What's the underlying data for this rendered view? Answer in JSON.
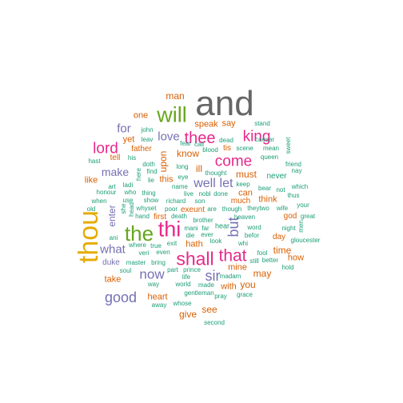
{
  "wordcloud": {
    "colors": {
      "gray": "#666666",
      "green": "#66a61e",
      "magenta": "#e7298a",
      "orange": "#d95f02",
      "purple": "#7570b3",
      "gold": "#e6ab02",
      "teal": "#1b9e77"
    },
    "words": [
      {
        "text": "and",
        "color": "#666666"
      },
      {
        "text": "will",
        "color": "#66a61e"
      },
      {
        "text": "thou",
        "color": "#e6ab02"
      },
      {
        "text": "thi",
        "color": "#e7298a"
      },
      {
        "text": "the",
        "color": "#66a61e"
      },
      {
        "text": "shall",
        "color": "#e7298a"
      },
      {
        "text": "that",
        "color": "#e7298a"
      },
      {
        "text": "thee",
        "color": "#e7298a"
      },
      {
        "text": "king",
        "color": "#e7298a"
      },
      {
        "text": "come",
        "color": "#e7298a"
      },
      {
        "text": "lord",
        "color": "#e7298a"
      },
      {
        "text": "good",
        "color": "#7570b3"
      },
      {
        "text": "but",
        "color": "#7570b3"
      },
      {
        "text": "sir",
        "color": "#7570b3"
      },
      {
        "text": "now",
        "color": "#7570b3"
      },
      {
        "text": "love",
        "color": "#7570b3"
      },
      {
        "text": "well",
        "color": "#7570b3"
      },
      {
        "text": "let",
        "color": "#7570b3"
      },
      {
        "text": "what",
        "color": "#7570b3"
      },
      {
        "text": "make",
        "color": "#7570b3"
      },
      {
        "text": "for",
        "color": "#7570b3"
      },
      {
        "text": "enter",
        "color": "#7570b3"
      },
      {
        "text": "man",
        "color": "#d95f02"
      },
      {
        "text": "one",
        "color": "#d95f02"
      },
      {
        "text": "say",
        "color": "#d95f02"
      },
      {
        "text": "speak",
        "color": "#d95f02"
      },
      {
        "text": "know",
        "color": "#d95f02"
      },
      {
        "text": "upon",
        "color": "#d95f02"
      },
      {
        "text": "ill",
        "color": "#d95f02"
      },
      {
        "text": "must",
        "color": "#d95f02"
      },
      {
        "text": "may",
        "color": "#d95f02"
      },
      {
        "text": "you",
        "color": "#d95f02"
      },
      {
        "text": "see",
        "color": "#d95f02"
      },
      {
        "text": "give",
        "color": "#d95f02"
      },
      {
        "text": "time",
        "color": "#d95f02"
      },
      {
        "text": "how",
        "color": "#d95f02"
      },
      {
        "text": "take",
        "color": "#d95f02"
      },
      {
        "text": "yet",
        "color": "#d95f02"
      },
      {
        "text": "like",
        "color": "#d95f02"
      },
      {
        "text": "this",
        "color": "#d95f02"
      },
      {
        "text": "hath",
        "color": "#d95f02"
      },
      {
        "text": "can",
        "color": "#d95f02"
      },
      {
        "text": "think",
        "color": "#d95f02"
      },
      {
        "text": "mine",
        "color": "#d95f02"
      },
      {
        "text": "with",
        "color": "#d95f02"
      },
      {
        "text": "heart",
        "color": "#d95f02"
      },
      {
        "text": "first",
        "color": "#d95f02"
      },
      {
        "text": "much",
        "color": "#d95f02"
      },
      {
        "text": "father",
        "color": "#d95f02"
      },
      {
        "text": "tell",
        "color": "#d95f02"
      },
      {
        "text": "exeunt",
        "color": "#d95f02"
      },
      {
        "text": "god",
        "color": "#d95f02"
      },
      {
        "text": "day",
        "color": "#d95f02"
      },
      {
        "text": "tis",
        "color": "#d95f02"
      },
      {
        "text": "never",
        "color": "#1b9e77"
      },
      {
        "text": "hear",
        "color": "#1b9e77"
      },
      {
        "text": "stand",
        "color": "#1b9e77"
      },
      {
        "text": "dead",
        "color": "#1b9e77"
      },
      {
        "text": "john",
        "color": "#1b9e77"
      },
      {
        "text": "leav",
        "color": "#1b9e77"
      },
      {
        "text": "fear",
        "color": "#1b9e77"
      },
      {
        "text": "call",
        "color": "#1b9e77"
      },
      {
        "text": "blood",
        "color": "#1b9e77"
      },
      {
        "text": "scene",
        "color": "#1b9e77"
      },
      {
        "text": "mean",
        "color": "#1b9e77"
      },
      {
        "text": "sweet",
        "color": "#1b9e77"
      },
      {
        "text": "his",
        "color": "#1b9e77"
      },
      {
        "text": "caesar",
        "color": "#1b9e77"
      },
      {
        "text": "queen",
        "color": "#1b9e77"
      },
      {
        "text": "friend",
        "color": "#1b9e77"
      },
      {
        "text": "nay",
        "color": "#1b9e77"
      },
      {
        "text": "hast",
        "color": "#1b9e77"
      },
      {
        "text": "doth",
        "color": "#1b9e77"
      },
      {
        "text": "here",
        "color": "#1b9e77"
      },
      {
        "text": "find",
        "color": "#1b9e77"
      },
      {
        "text": "long",
        "color": "#1b9e77"
      },
      {
        "text": "thought",
        "color": "#1b9e77"
      },
      {
        "text": "keep",
        "color": "#1b9e77"
      },
      {
        "text": "bear",
        "color": "#1b9e77"
      },
      {
        "text": "not",
        "color": "#1b9e77"
      },
      {
        "text": "which",
        "color": "#1b9e77"
      },
      {
        "text": "art",
        "color": "#1b9e77"
      },
      {
        "text": "ladi",
        "color": "#1b9e77"
      },
      {
        "text": "lie",
        "color": "#1b9e77"
      },
      {
        "text": "eye",
        "color": "#1b9e77"
      },
      {
        "text": "name",
        "color": "#1b9e77"
      },
      {
        "text": "thus",
        "color": "#1b9e77"
      },
      {
        "text": "honour",
        "color": "#1b9e77"
      },
      {
        "text": "who",
        "color": "#1b9e77"
      },
      {
        "text": "thing",
        "color": "#1b9e77"
      },
      {
        "text": "live",
        "color": "#1b9e77"
      },
      {
        "text": "nobl",
        "color": "#1b9e77"
      },
      {
        "text": "done",
        "color": "#1b9e77"
      },
      {
        "text": "when",
        "color": "#1b9e77"
      },
      {
        "text": "use",
        "color": "#1b9e77"
      },
      {
        "text": "show",
        "color": "#1b9e77"
      },
      {
        "text": "richard",
        "color": "#1b9e77"
      },
      {
        "text": "son",
        "color": "#1b9e77"
      },
      {
        "text": "old",
        "color": "#1b9e77"
      },
      {
        "text": "she",
        "color": "#1b9e77"
      },
      {
        "text": "head",
        "color": "#1b9e77"
      },
      {
        "text": "whyset",
        "color": "#1b9e77"
      },
      {
        "text": "poor",
        "color": "#1b9e77"
      },
      {
        "text": "your",
        "color": "#1b9e77"
      },
      {
        "text": "men",
        "color": "#1b9e77"
      },
      {
        "text": "heaven",
        "color": "#1b9e77"
      },
      {
        "text": "great",
        "color": "#1b9e77"
      },
      {
        "text": "brother",
        "color": "#1b9e77"
      },
      {
        "text": "night",
        "color": "#1b9e77"
      },
      {
        "text": "hand",
        "color": "#1b9e77"
      },
      {
        "text": "death",
        "color": "#1b9e77"
      },
      {
        "text": "ani",
        "color": "#1b9e77"
      },
      {
        "text": "mani",
        "color": "#1b9e77"
      },
      {
        "text": "far",
        "color": "#1b9e77"
      },
      {
        "text": "die",
        "color": "#1b9e77"
      },
      {
        "text": "ever",
        "color": "#1b9e77"
      },
      {
        "text": "befor",
        "color": "#1b9e77"
      },
      {
        "text": "gloucester",
        "color": "#1b9e77"
      },
      {
        "text": "where",
        "color": "#1b9e77"
      },
      {
        "text": "true",
        "color": "#1b9e77"
      },
      {
        "text": "exit",
        "color": "#1b9e77"
      },
      {
        "text": "word",
        "color": "#1b9e77"
      },
      {
        "text": "veri",
        "color": "#1b9e77"
      },
      {
        "text": "even",
        "color": "#1b9e77"
      },
      {
        "text": "look",
        "color": "#1b9e77"
      },
      {
        "text": "fool",
        "color": "#1b9e77"
      },
      {
        "text": "master",
        "color": "#1b9e77"
      },
      {
        "text": "bring",
        "color": "#1b9e77"
      },
      {
        "text": "part",
        "color": "#1b9e77"
      },
      {
        "text": "prince",
        "color": "#1b9e77"
      },
      {
        "text": "still",
        "color": "#1b9e77"
      },
      {
        "text": "better",
        "color": "#1b9e77"
      },
      {
        "text": "soul",
        "color": "#1b9e77"
      },
      {
        "text": "life",
        "color": "#1b9e77"
      },
      {
        "text": "madam",
        "color": "#1b9e77"
      },
      {
        "text": "hold",
        "color": "#1b9e77"
      },
      {
        "text": "way",
        "color": "#1b9e77"
      },
      {
        "text": "world",
        "color": "#1b9e77"
      },
      {
        "text": "made",
        "color": "#1b9e77"
      },
      {
        "text": "away",
        "color": "#1b9e77"
      },
      {
        "text": "whose",
        "color": "#1b9e77"
      },
      {
        "text": "gentleman",
        "color": "#1b9e77"
      },
      {
        "text": "pray",
        "color": "#1b9e77"
      },
      {
        "text": "grace",
        "color": "#1b9e77"
      },
      {
        "text": "second",
        "color": "#1b9e77"
      },
      {
        "text": "are",
        "color": "#1b9e77"
      },
      {
        "text": "though",
        "color": "#1b9e77"
      },
      {
        "text": "theytwo",
        "color": "#1b9e77"
      },
      {
        "text": "wife",
        "color": "#1b9e77"
      },
      {
        "text": "whi",
        "color": "#1b9e77"
      },
      {
        "text": "duke",
        "color": "#7570b3"
      }
    ]
  }
}
